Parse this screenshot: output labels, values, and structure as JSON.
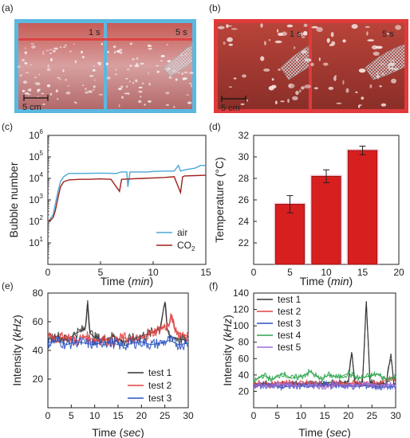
{
  "panels": {
    "a": {
      "label": "(a)",
      "frame_color": "#5bb8e0",
      "time_labels": [
        "1 s",
        "5 s"
      ],
      "scale_label": "5 cm",
      "description_tag": "air-bubble-photos"
    },
    "b": {
      "label": "(b)",
      "frame_color": "#e03a3a",
      "time_labels": [
        "1 s",
        "5 s"
      ],
      "scale_label": "5 cm",
      "description_tag": "co2-bubble-photos"
    }
  },
  "colors": {
    "air": "#4aa7d6",
    "co2": "#a0201a",
    "bar_fill": "#d81f1f",
    "bar_edge": "#8a1010",
    "test1": "#333333",
    "test2": "#e04040",
    "test3": "#2a52c0",
    "test4": "#2ea44f",
    "test5": "#9b6cd6"
  },
  "chart_data": [
    {
      "id": "c",
      "panel_label": "(c)",
      "type": "line",
      "xlabel": "Time",
      "xunit": "min",
      "ylabel": "Bubble number",
      "xlim": [
        0,
        15
      ],
      "ylog": true,
      "ylim_exp": [
        0,
        6
      ],
      "xticks": [
        0,
        5,
        10,
        15
      ],
      "yticks_exp": [
        1,
        2,
        3,
        4,
        5,
        6
      ],
      "legend_position": "bottom-right",
      "series": [
        {
          "name": "air",
          "x": [
            0,
            0.3,
            0.5,
            0.7,
            1.0,
            1.2,
            1.5,
            1.8,
            2.0,
            3.0,
            5.0,
            6.5,
            6.8,
            7.0,
            7.5,
            7.6,
            7.8,
            9.5,
            10.0,
            11.0,
            12.0,
            12.4,
            12.6,
            13.0,
            14.0,
            14.5,
            15.0
          ],
          "y": [
            90,
            150,
            200,
            600,
            3000,
            7000,
            12000,
            15000,
            17000,
            17000,
            17500,
            17000,
            19000,
            20000,
            20000,
            4000,
            20000,
            20000,
            21000,
            22000,
            22000,
            40000,
            22000,
            25000,
            30000,
            40000,
            40000
          ]
        },
        {
          "name": "CO2",
          "legend_label": "CO",
          "legend_subscript": "2",
          "x": [
            0,
            0.3,
            0.5,
            0.7,
            1.0,
            1.2,
            1.5,
            2.0,
            3.0,
            4.0,
            5.0,
            6.0,
            6.8,
            7.0,
            8.0,
            9.0,
            10.0,
            11.0,
            12.0,
            12.6,
            12.8,
            13.0,
            14.0,
            15.0
          ],
          "y": [
            100,
            120,
            150,
            300,
            1500,
            4000,
            7000,
            8500,
            9000,
            9000,
            9500,
            9000,
            2500,
            9000,
            9500,
            10000,
            10500,
            11000,
            12000,
            2200,
            12000,
            13000,
            13500,
            14000
          ]
        }
      ]
    },
    {
      "id": "d",
      "panel_label": "(d)",
      "type": "bar",
      "xlabel": "Time",
      "xunit": "min",
      "ylabel": "Temperature",
      "yunit": "°C",
      "xlim": [
        0,
        20
      ],
      "ylim": [
        20,
        32
      ],
      "xticks": [
        0,
        5,
        10,
        15,
        20
      ],
      "yticks": [
        22,
        24,
        26,
        28,
        30,
        32
      ],
      "categories": [
        5,
        10,
        15
      ],
      "values": [
        25.6,
        28.2,
        30.6
      ],
      "errors": [
        0.8,
        0.6,
        0.4
      ]
    },
    {
      "id": "e",
      "panel_label": "(e)",
      "type": "line",
      "xlabel": "Time",
      "xunit": "sec",
      "ylabel": "Intensity",
      "yunit": "kHz",
      "xlim": [
        0,
        30
      ],
      "ylim": [
        0,
        80
      ],
      "xticks": [
        0,
        5,
        10,
        15,
        20,
        25,
        30
      ],
      "yticks": [
        20,
        40,
        60,
        80
      ],
      "legend_position": "bottom-right",
      "series": [
        {
          "name": "test 1",
          "x": [
            0,
            2,
            4,
            6,
            8,
            8.5,
            9,
            10,
            12,
            14,
            16,
            18,
            20,
            22,
            24,
            25,
            25.5,
            26,
            28,
            30
          ],
          "y": [
            48,
            50,
            47,
            52,
            55,
            75,
            52,
            49,
            47,
            50,
            46,
            48,
            50,
            52,
            56,
            74,
            55,
            50,
            48,
            47
          ]
        },
        {
          "name": "test 2",
          "x": [
            0,
            2,
            4,
            6,
            8,
            10,
            12,
            14,
            16,
            18,
            20,
            22,
            24,
            26,
            26.5,
            27,
            28,
            30
          ],
          "y": [
            52,
            48,
            50,
            46,
            50,
            47,
            48,
            46,
            49,
            47,
            48,
            52,
            55,
            58,
            65,
            55,
            52,
            50
          ]
        },
        {
          "name": "test 3",
          "x": [
            0,
            2,
            4,
            6,
            8,
            10,
            12,
            14,
            16,
            18,
            20,
            22,
            24,
            26,
            28,
            30
          ],
          "y": [
            45,
            47,
            44,
            46,
            45,
            44,
            46,
            45,
            43,
            45,
            46,
            44,
            45,
            47,
            44,
            45
          ]
        }
      ]
    },
    {
      "id": "f",
      "panel_label": "(f)",
      "type": "line",
      "xlabel": "Time",
      "xunit": "sec",
      "ylabel": "Intensity",
      "yunit": "kHz",
      "xlim": [
        0,
        30
      ],
      "ylim": [
        0,
        140
      ],
      "xticks": [
        0,
        5,
        10,
        15,
        20,
        25,
        30
      ],
      "yticks": [
        20,
        40,
        60,
        80,
        100,
        120,
        140
      ],
      "legend_position": "top-left",
      "series": [
        {
          "name": "test 1",
          "x": [
            0,
            2,
            4,
            6,
            8,
            10,
            12,
            14,
            16,
            18,
            20,
            20.7,
            21.4,
            22,
            23,
            23.8,
            24.6,
            26,
            28,
            29,
            29.6,
            30
          ],
          "y": [
            28,
            30,
            27,
            29,
            31,
            28,
            30,
            29,
            31,
            30,
            32,
            68,
            32,
            30,
            31,
            130,
            31,
            29,
            30,
            66,
            30,
            29
          ]
        },
        {
          "name": "test 2",
          "x": [
            0,
            3,
            6,
            9,
            12,
            15,
            18,
            21,
            24,
            27,
            29.5,
            30
          ],
          "y": [
            30,
            28,
            31,
            29,
            30,
            28,
            29,
            30,
            28,
            31,
            38,
            30
          ]
        },
        {
          "name": "test 3",
          "x": [
            0,
            3,
            6,
            9,
            12,
            15,
            18,
            21,
            24,
            27,
            30
          ],
          "y": [
            26,
            28,
            25,
            27,
            26,
            28,
            27,
            26,
            27,
            25,
            26
          ]
        },
        {
          "name": "test 4",
          "x": [
            0,
            2,
            4,
            6,
            8,
            10,
            12,
            14,
            16,
            18,
            20,
            22,
            24,
            26,
            28,
            30
          ],
          "y": [
            32,
            40,
            34,
            42,
            36,
            38,
            44,
            35,
            40,
            37,
            42,
            36,
            38,
            41,
            35,
            37
          ]
        },
        {
          "name": "test 5",
          "x": [
            0,
            3,
            6,
            9,
            12,
            15,
            18,
            21,
            24,
            27,
            30
          ],
          "y": [
            28,
            26,
            29,
            27,
            28,
            26,
            28,
            27,
            29,
            27,
            28
          ]
        }
      ]
    }
  ]
}
